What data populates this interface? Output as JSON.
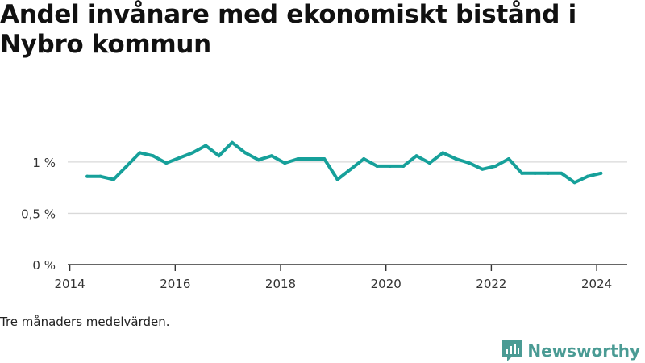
{
  "title": "Andel invånare med ekonomiskt bistånd i Nybro kommun",
  "caption": "Tre månaders medelvärden.",
  "brand": {
    "name": "Newsworthy",
    "icon": "newsworthy-logo-icon",
    "color": "#4a9b94"
  },
  "colors": {
    "line": "#16a09a",
    "grid": "#d9d9d9",
    "axis": "#333333",
    "text": "#333333"
  },
  "chart_data": {
    "type": "line",
    "title": "Andel invånare med ekonomiskt bistånd i Nybro kommun",
    "xlabel": "",
    "ylabel": "",
    "xlim": [
      2013.96,
      2024.58
    ],
    "ylim": [
      0,
      1.4
    ],
    "grid": true,
    "x_ticks": [
      2014,
      2016,
      2018,
      2020,
      2022,
      2024
    ],
    "x_tick_labels": [
      "2014",
      "2016",
      "2018",
      "2020",
      "2022",
      "2024"
    ],
    "y_ticks": [
      0,
      0.5,
      1
    ],
    "y_tick_labels": [
      "0 %",
      "0,5 %",
      "1 %"
    ],
    "series": [
      {
        "x": [
          2014.33,
          2014.58,
          2014.83,
          2015.08,
          2015.33,
          2015.58,
          2015.83,
          2016.08,
          2016.33,
          2016.58,
          2016.83,
          2017.08,
          2017.33,
          2017.58,
          2017.83,
          2018.08,
          2018.33,
          2018.58,
          2018.83,
          2019.08,
          2019.33,
          2019.58,
          2019.83,
          2020.08,
          2020.33,
          2020.58,
          2020.83,
          2021.08,
          2021.33,
          2021.58,
          2021.83,
          2022.08,
          2022.33,
          2022.58,
          2022.83,
          2023.08,
          2023.33,
          2023.58,
          2023.83,
          2024.08
        ],
        "values": [
          0.86,
          0.86,
          0.83,
          0.96,
          1.09,
          1.06,
          0.99,
          1.04,
          1.09,
          1.16,
          1.06,
          1.19,
          1.09,
          1.02,
          1.06,
          0.99,
          1.03,
          1.03,
          1.03,
          0.83,
          0.93,
          1.03,
          0.96,
          0.96,
          0.96,
          1.06,
          0.99,
          1.09,
          1.03,
          0.99,
          0.93,
          0.96,
          1.03,
          0.89,
          0.89,
          0.89,
          0.89,
          0.8,
          0.86,
          0.89
        ]
      }
    ]
  }
}
